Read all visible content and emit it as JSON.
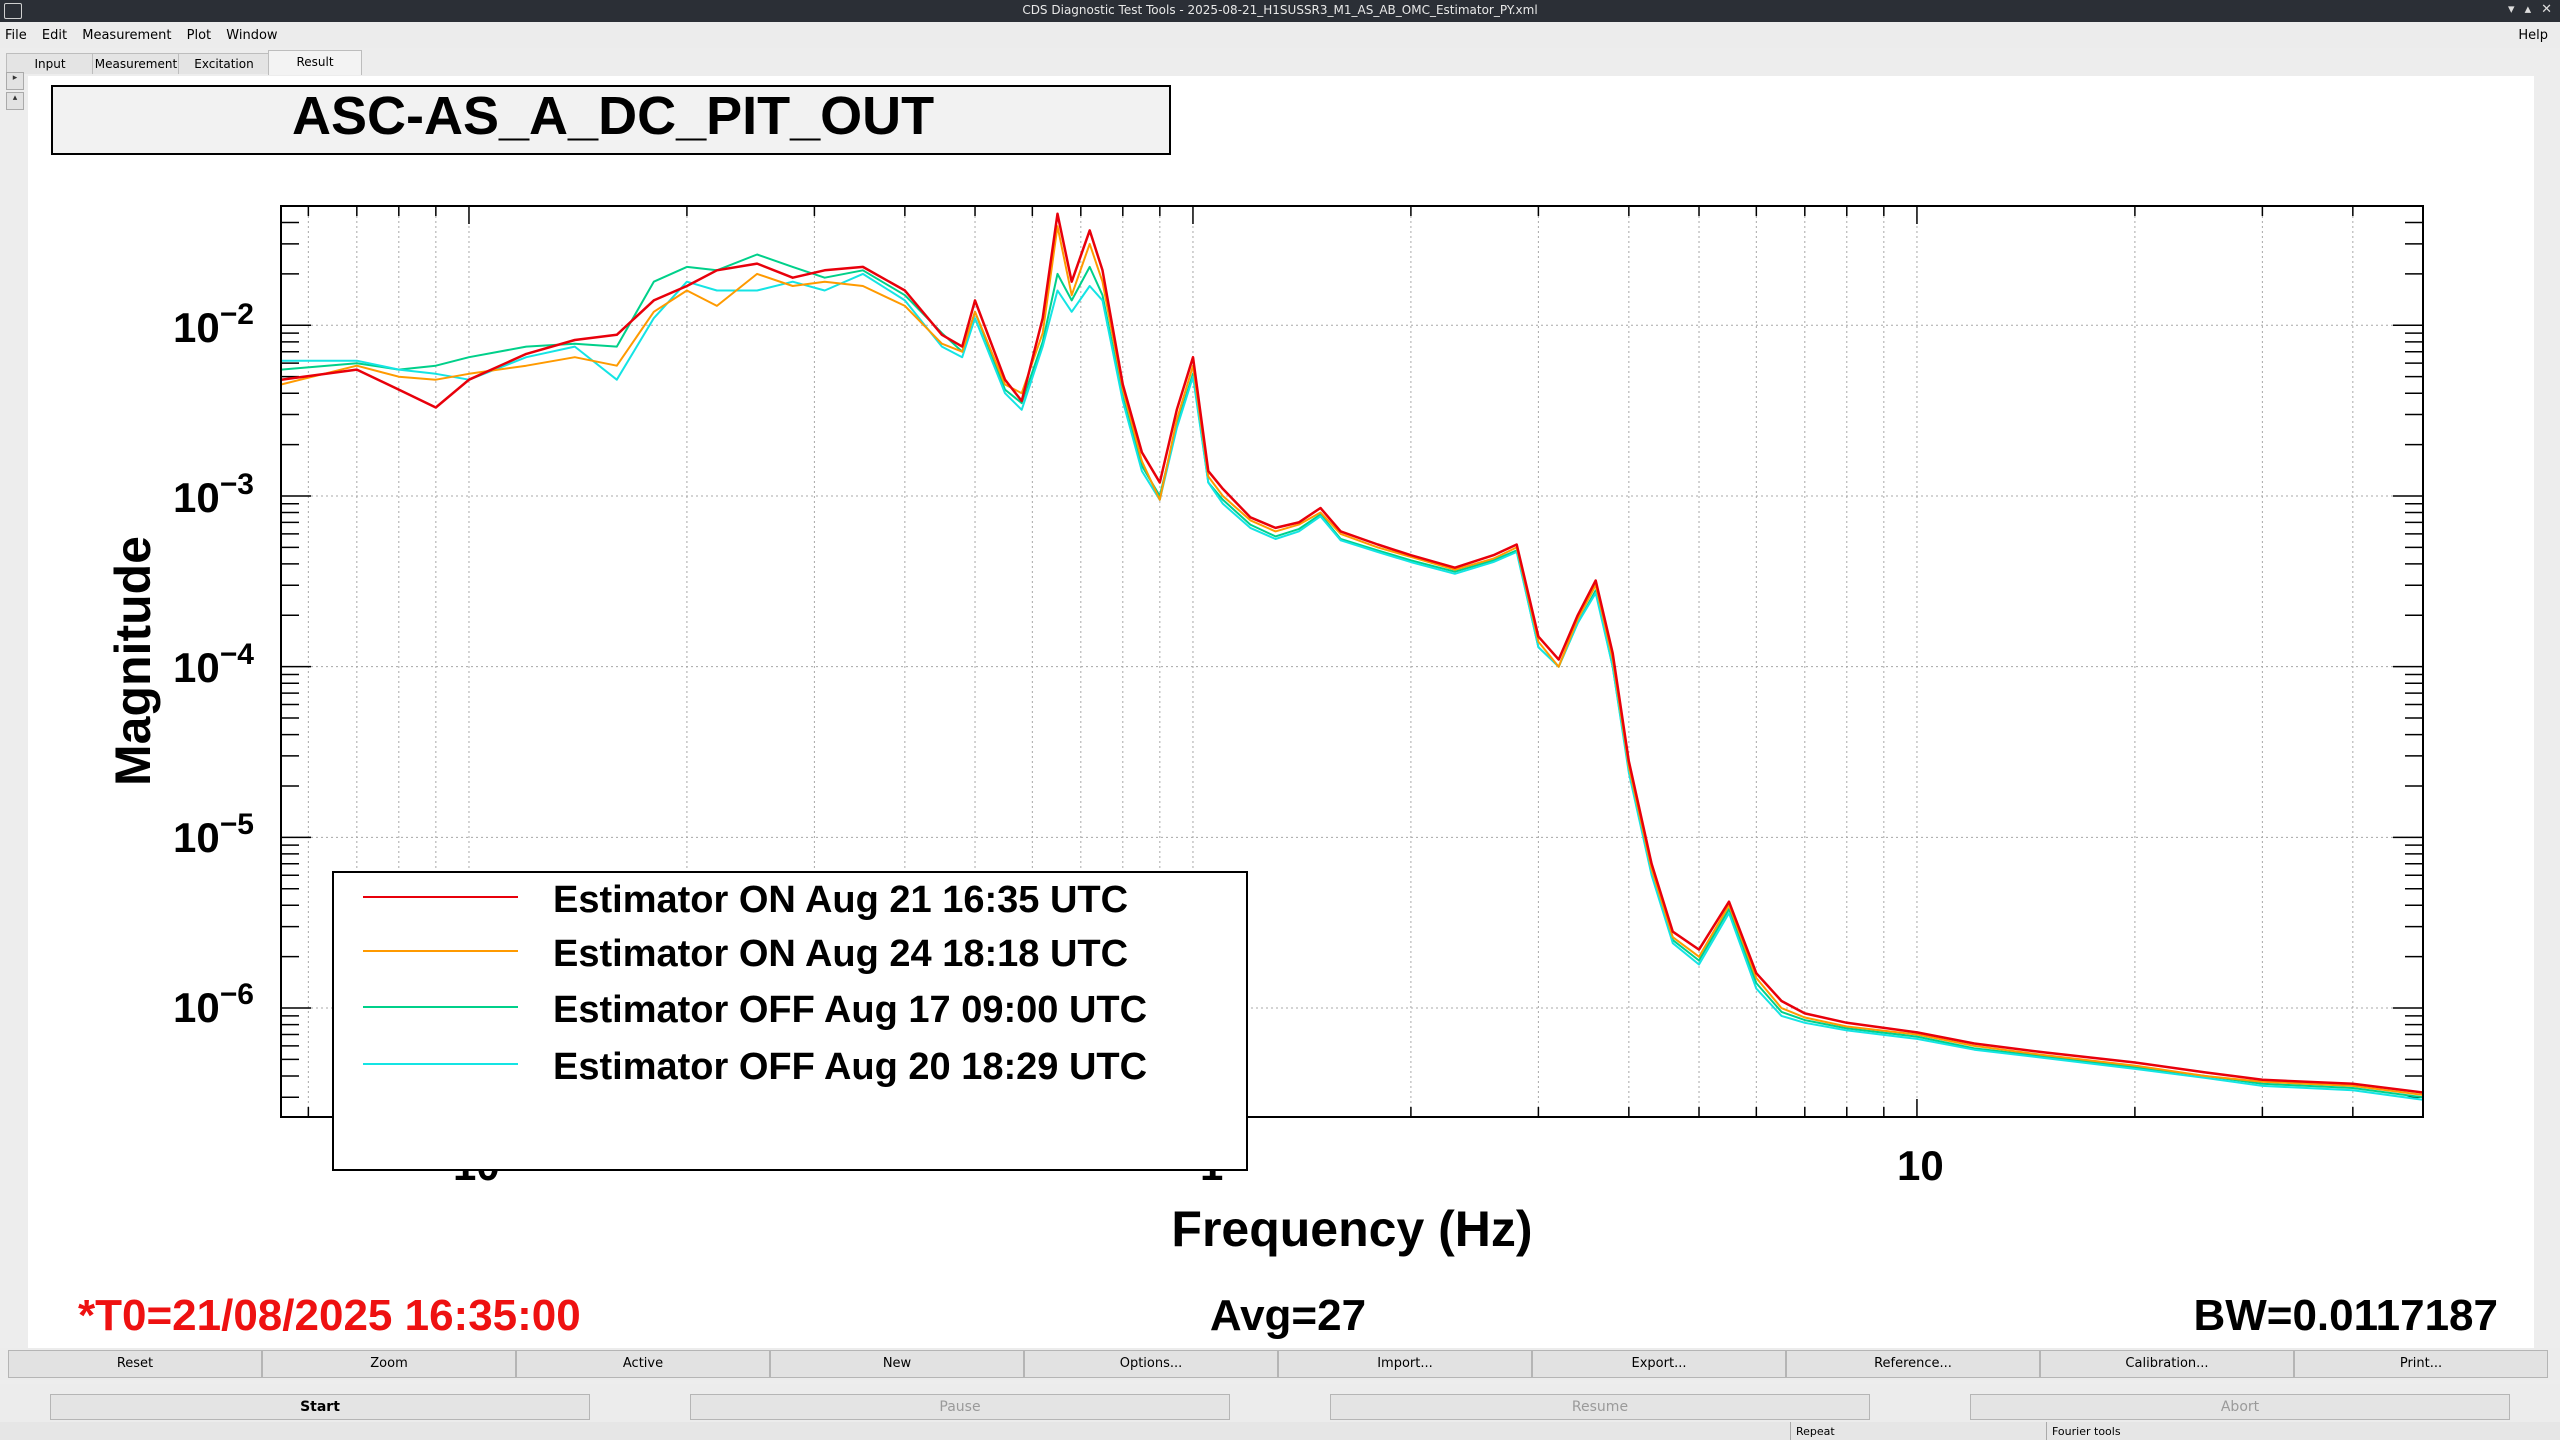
{
  "window": {
    "title": "CDS Diagnostic Test Tools - 2025-08-21_H1SUSSR3_M1_AS_AB_OMC_Estimator_PY.xml"
  },
  "menu": {
    "items": [
      "File",
      "Edit",
      "Measurement",
      "Plot",
      "Window"
    ],
    "help": "Help"
  },
  "tabs": [
    "Input",
    "Measurement",
    "Excitation",
    "Result"
  ],
  "selected_tab": "Result",
  "plot": {
    "title_box": "ASC-AS_A_DC_PIT_OUT",
    "ylabel": "Magnitude",
    "xlabel": "Frequency (Hz)",
    "xticks": [
      "10",
      "1",
      "10"
    ],
    "x_exp": "−1",
    "ytick_base": "10",
    "yticks_exp": [
      "−2",
      "−3",
      "−4",
      "−5",
      "−6"
    ],
    "t0": "*T0=21/08/2025 16:35:00",
    "avg": "Avg=27",
    "bw": "BW=0.0117187",
    "colors": {
      "red": "#e8000b",
      "orange": "#ff9a00",
      "green": "#00d08a",
      "cyan": "#14e4e4",
      "t0_color": "#ee1111"
    }
  },
  "chart_data": {
    "type": "line",
    "title": "ASC-AS_A_DC_PIT_OUT",
    "xlabel": "Frequency (Hz)",
    "ylabel": "Magnitude",
    "xscale": "log",
    "yscale": "log",
    "xlim": [
      0.055,
      50
    ],
    "ylim": [
      2.3e-07,
      0.05
    ],
    "grid": true,
    "legend_placement": "lower-left",
    "series": [
      {
        "name": "Estimator ON Aug 21 16:35 UTC",
        "color": "#e8000b",
        "x": [
          0.055,
          0.07,
          0.08,
          0.09,
          0.1,
          0.12,
          0.14,
          0.16,
          0.18,
          0.2,
          0.22,
          0.25,
          0.28,
          0.31,
          0.35,
          0.4,
          0.45,
          0.48,
          0.5,
          0.55,
          0.58,
          0.62,
          0.65,
          0.68,
          0.72,
          0.75,
          0.8,
          0.85,
          0.9,
          0.95,
          1.0,
          1.05,
          1.1,
          1.2,
          1.3,
          1.4,
          1.5,
          1.6,
          1.8,
          2.0,
          2.3,
          2.6,
          2.8,
          3.0,
          3.2,
          3.4,
          3.6,
          3.8,
          4.0,
          4.3,
          4.6,
          5.0,
          5.5,
          6.0,
          6.5,
          7,
          8,
          10,
          12,
          15,
          20,
          25,
          30,
          40,
          50
        ],
        "y": [
          0.0048,
          0.0055,
          0.0042,
          0.0033,
          0.0048,
          0.0068,
          0.0082,
          0.0088,
          0.014,
          0.017,
          0.021,
          0.023,
          0.019,
          0.021,
          0.022,
          0.016,
          0.0088,
          0.0075,
          0.014,
          0.0048,
          0.0036,
          0.011,
          0.045,
          0.018,
          0.036,
          0.021,
          0.0045,
          0.0018,
          0.0012,
          0.0032,
          0.0065,
          0.0014,
          0.0011,
          0.00075,
          0.00065,
          0.0007,
          0.00085,
          0.00062,
          0.00052,
          0.00045,
          0.00038,
          0.00045,
          0.00052,
          0.00015,
          0.00011,
          0.0002,
          0.00032,
          0.00012,
          2.8e-05,
          7e-06,
          2.8e-06,
          2.2e-06,
          4.2e-06,
          1.6e-06,
          1.1e-06,
          9.3e-07,
          8.2e-07,
          7.2e-07,
          6.2e-07,
          5.5e-07,
          4.8e-07,
          4.2e-07,
          3.8e-07,
          3.6e-07,
          3.2e-07
        ]
      },
      {
        "name": "Estimator ON Aug 24 18:18 UTC",
        "color": "#ff9a00",
        "x": [
          0.055,
          0.07,
          0.08,
          0.09,
          0.1,
          0.12,
          0.14,
          0.16,
          0.18,
          0.2,
          0.22,
          0.25,
          0.28,
          0.31,
          0.35,
          0.4,
          0.45,
          0.48,
          0.5,
          0.55,
          0.58,
          0.62,
          0.65,
          0.68,
          0.72,
          0.75,
          0.8,
          0.85,
          0.9,
          0.95,
          1.0,
          1.05,
          1.1,
          1.2,
          1.3,
          1.4,
          1.5,
          1.6,
          1.8,
          2.0,
          2.3,
          2.6,
          2.8,
          3.0,
          3.2,
          3.4,
          3.6,
          3.8,
          4.0,
          4.3,
          4.6,
          5.0,
          5.5,
          6.0,
          6.5,
          7,
          8,
          10,
          12,
          15,
          20,
          25,
          30,
          40,
          50
        ],
        "y": [
          0.0045,
          0.0058,
          0.005,
          0.0048,
          0.0052,
          0.0058,
          0.0065,
          0.0058,
          0.012,
          0.016,
          0.013,
          0.02,
          0.017,
          0.018,
          0.017,
          0.013,
          0.0078,
          0.007,
          0.012,
          0.0045,
          0.004,
          0.009,
          0.038,
          0.015,
          0.03,
          0.018,
          0.0042,
          0.0016,
          0.00095,
          0.0028,
          0.0058,
          0.0013,
          0.001,
          0.00072,
          0.00062,
          0.00068,
          0.0008,
          0.0006,
          0.0005,
          0.00044,
          0.00037,
          0.00043,
          0.0005,
          0.00014,
          0.0001,
          0.00019,
          0.0003,
          0.00011,
          2.6e-05,
          6.5e-06,
          2.6e-06,
          2e-06,
          4e-06,
          1.5e-06,
          1e-06,
          8.8e-07,
          7.8e-07,
          7e-07,
          6e-07,
          5.3e-07,
          4.6e-07,
          4e-07,
          3.7e-07,
          3.5e-07,
          3.1e-07
        ]
      },
      {
        "name": "Estimator OFF Aug 17 09:00 UTC",
        "color": "#00d08a",
        "x": [
          0.055,
          0.07,
          0.08,
          0.09,
          0.1,
          0.12,
          0.14,
          0.16,
          0.18,
          0.2,
          0.22,
          0.25,
          0.28,
          0.31,
          0.35,
          0.4,
          0.45,
          0.48,
          0.5,
          0.55,
          0.58,
          0.62,
          0.65,
          0.68,
          0.72,
          0.75,
          0.8,
          0.85,
          0.9,
          0.95,
          1.0,
          1.05,
          1.1,
          1.2,
          1.3,
          1.4,
          1.5,
          1.6,
          1.8,
          2.0,
          2.3,
          2.6,
          2.8,
          3.0,
          3.2,
          3.4,
          3.6,
          3.8,
          4.0,
          4.3,
          4.6,
          5.0,
          5.5,
          6.0,
          6.5,
          7,
          8,
          10,
          12,
          15,
          20,
          25,
          30,
          40,
          50
        ],
        "y": [
          0.0055,
          0.006,
          0.0055,
          0.0058,
          0.0065,
          0.0075,
          0.0078,
          0.0075,
          0.018,
          0.022,
          0.021,
          0.026,
          0.022,
          0.019,
          0.021,
          0.015,
          0.009,
          0.007,
          0.012,
          0.0042,
          0.0035,
          0.008,
          0.02,
          0.014,
          0.022,
          0.015,
          0.0038,
          0.0015,
          0.001,
          0.0026,
          0.0052,
          0.0012,
          0.00095,
          0.00068,
          0.00058,
          0.00064,
          0.00078,
          0.00056,
          0.00048,
          0.00042,
          0.00036,
          0.00042,
          0.00048,
          0.00013,
          0.0001,
          0.00018,
          0.00028,
          0.0001,
          2.5e-05,
          6.2e-06,
          2.5e-06,
          1.9e-06,
          3.8e-06,
          1.4e-06,
          9.5e-07,
          8.5e-07,
          7.6e-07,
          6.8e-07,
          5.8e-07,
          5.2e-07,
          4.5e-07,
          4e-07,
          3.6e-07,
          3.4e-07,
          3e-07
        ]
      },
      {
        "name": "Estimator OFF Aug 20 18:29 UTC",
        "color": "#14e4e4",
        "x": [
          0.055,
          0.07,
          0.08,
          0.09,
          0.1,
          0.12,
          0.14,
          0.16,
          0.18,
          0.2,
          0.22,
          0.25,
          0.28,
          0.31,
          0.35,
          0.4,
          0.45,
          0.48,
          0.5,
          0.55,
          0.58,
          0.62,
          0.65,
          0.68,
          0.72,
          0.75,
          0.8,
          0.85,
          0.9,
          0.95,
          1.0,
          1.05,
          1.1,
          1.2,
          1.3,
          1.4,
          1.5,
          1.6,
          1.8,
          2.0,
          2.3,
          2.6,
          2.8,
          3.0,
          3.2,
          3.4,
          3.6,
          3.8,
          4.0,
          4.3,
          4.6,
          5.0,
          5.5,
          6.0,
          6.5,
          7,
          8,
          10,
          12,
          15,
          20,
          25,
          30,
          40,
          50
        ],
        "y": [
          0.0062,
          0.0062,
          0.0055,
          0.0052,
          0.0048,
          0.0065,
          0.0075,
          0.0048,
          0.011,
          0.018,
          0.016,
          0.016,
          0.018,
          0.016,
          0.02,
          0.014,
          0.0075,
          0.0065,
          0.011,
          0.004,
          0.0032,
          0.0075,
          0.016,
          0.012,
          0.017,
          0.014,
          0.0036,
          0.0014,
          0.00095,
          0.0025,
          0.005,
          0.0012,
          0.0009,
          0.00065,
          0.00056,
          0.00062,
          0.00076,
          0.00055,
          0.00047,
          0.00041,
          0.00035,
          0.00041,
          0.00047,
          0.00013,
          0.0001,
          0.00018,
          0.00027,
          0.0001,
          2.4e-05,
          6e-06,
          2.4e-06,
          1.8e-06,
          3.6e-06,
          1.3e-06,
          9e-07,
          8.2e-07,
          7.4e-07,
          6.6e-07,
          5.7e-07,
          5.1e-07,
          4.4e-07,
          3.9e-07,
          3.5e-07,
          3.3e-07,
          2.9e-07
        ]
      }
    ]
  },
  "buttons": [
    "Reset",
    "Zoom",
    "Active",
    "New",
    "Options...",
    "Import...",
    "Export...",
    "Reference...",
    "Calibration...",
    "Print..."
  ],
  "controls": [
    "Start",
    "Pause",
    "Resume",
    "Abort"
  ],
  "status": {
    "repeat": "Repeat",
    "fourier": "Fourier tools"
  }
}
